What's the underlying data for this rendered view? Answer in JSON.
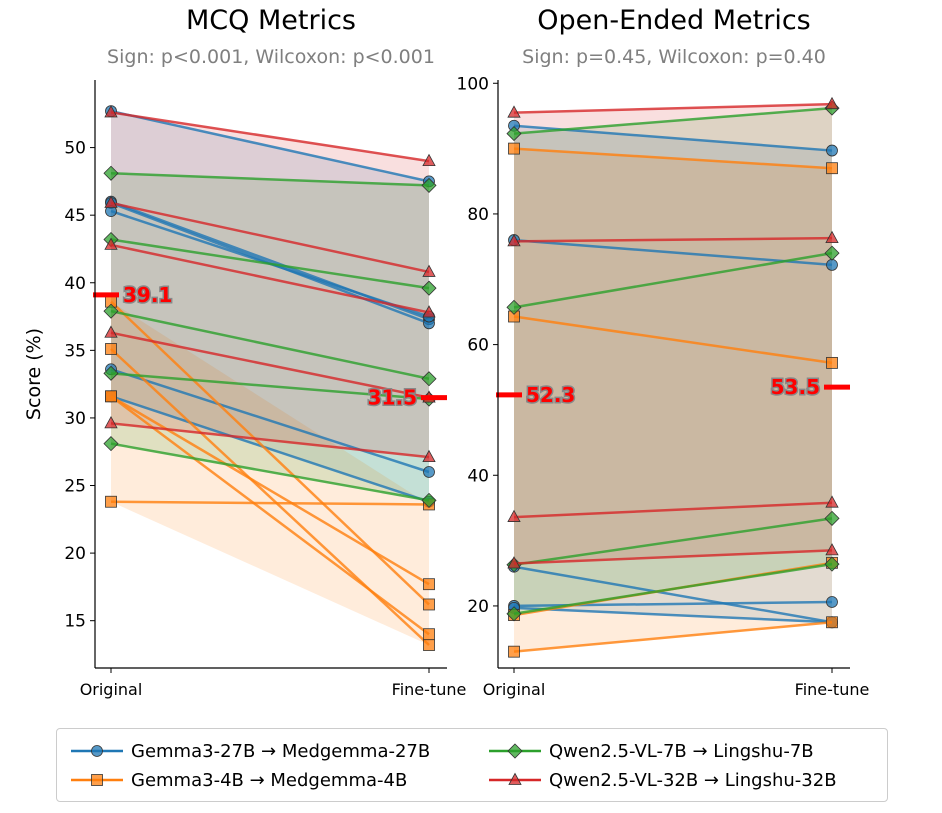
{
  "colors": {
    "gemma27": "#1f77b4",
    "gemma4": "#ff7f0e",
    "qwen7": "#2ca02c",
    "qwen32": "#d62728",
    "mean_line": "#ff0000",
    "subtitle": "#7f7f7f"
  },
  "legend": {
    "items": [
      {
        "label": "Gemma3-27B → Medgemma-27B",
        "color_key": "gemma27",
        "marker": "circle"
      },
      {
        "label": "Gemma3-4B → Medgemma-4B",
        "color_key": "gemma4",
        "marker": "square"
      },
      {
        "label": "Qwen2.5-VL-7B → Lingshu-7B",
        "color_key": "qwen7",
        "marker": "diamond"
      },
      {
        "label": "Qwen2.5-VL-32B → Lingshu-32B",
        "color_key": "qwen32",
        "marker": "triangle"
      }
    ]
  },
  "chart_data": [
    {
      "type": "line",
      "title": "MCQ Metrics",
      "subtitle": "Sign: p<0.001, Wilcoxon: p<0.001",
      "ylabel": "Score (%)",
      "categories": [
        "Original",
        "Fine-tune"
      ],
      "ylim": [
        11.5,
        55
      ],
      "yticks": [
        15,
        20,
        25,
        30,
        35,
        40,
        45,
        50
      ],
      "mean_labels": {
        "original": "39.1",
        "finetune": "31.5"
      },
      "means": [
        39.1,
        31.5
      ],
      "series": [
        {
          "name": "Gemma3-27B → Medgemma-27B",
          "color_key": "gemma27",
          "marker": "circle",
          "pairs": [
            [
              52.7,
              47.5
            ],
            [
              46.0,
              37.3
            ],
            [
              45.9,
              37.0
            ],
            [
              45.3,
              37.5
            ],
            [
              33.6,
              26.0
            ],
            [
              31.6,
              23.8
            ]
          ]
        },
        {
          "name": "Gemma3-4B → Medgemma-4B",
          "color_key": "gemma4",
          "marker": "square",
          "pairs": [
            [
              38.6,
              16.2
            ],
            [
              35.1,
              13.2
            ],
            [
              31.6,
              17.7
            ],
            [
              31.6,
              14.0
            ],
            [
              23.8,
              23.6
            ]
          ]
        },
        {
          "name": "Qwen2.5-VL-7B → Lingshu-7B",
          "color_key": "qwen7",
          "marker": "diamond",
          "pairs": [
            [
              48.1,
              47.2
            ],
            [
              43.2,
              39.6
            ],
            [
              37.9,
              32.9
            ],
            [
              33.3,
              31.4
            ],
            [
              28.1,
              23.9
            ]
          ]
        },
        {
          "name": "Qwen2.5-VL-32B → Lingshu-32B",
          "color_key": "qwen32",
          "marker": "triangle",
          "pairs": [
            [
              52.6,
              49.0
            ],
            [
              45.9,
              40.8
            ],
            [
              42.8,
              37.8
            ],
            [
              36.3,
              31.5
            ],
            [
              29.6,
              27.1
            ]
          ]
        }
      ]
    },
    {
      "type": "line",
      "title": "Open-Ended Metrics",
      "subtitle": "Sign: p=0.45, Wilcoxon: p=0.40",
      "ylabel": "",
      "categories": [
        "Original",
        "Fine-tune"
      ],
      "ylim": [
        10.5,
        100.5
      ],
      "yticks": [
        20,
        40,
        60,
        80,
        100
      ],
      "mean_labels": {
        "original": "52.3",
        "finetune": "53.5"
      },
      "means": [
        52.3,
        53.5
      ],
      "series": [
        {
          "name": "Gemma3-27B → Medgemma-27B",
          "color_key": "gemma27",
          "marker": "circle",
          "pairs": [
            [
              93.5,
              89.7
            ],
            [
              76.0,
              72.2
            ],
            [
              26.0,
              17.5
            ],
            [
              20.0,
              20.6
            ],
            [
              19.7,
              17.5
            ]
          ]
        },
        {
          "name": "Gemma3-4B → Medgemma-4B",
          "color_key": "gemma4",
          "marker": "square",
          "pairs": [
            [
              90.0,
              87.0
            ],
            [
              64.3,
              57.2
            ],
            [
              18.6,
              26.6
            ],
            [
              13.0,
              17.5
            ]
          ]
        },
        {
          "name": "Qwen2.5-VL-7B → Lingshu-7B",
          "color_key": "qwen7",
          "marker": "diamond",
          "pairs": [
            [
              92.3,
              96.2
            ],
            [
              65.7,
              74.0
            ],
            [
              26.3,
              33.4
            ],
            [
              18.8,
              26.4
            ]
          ]
        },
        {
          "name": "Qwen2.5-VL-32B → Lingshu-32B",
          "color_key": "qwen32",
          "marker": "triangle",
          "pairs": [
            [
              95.5,
              96.8
            ],
            [
              75.8,
              76.3
            ],
            [
              33.6,
              35.8
            ],
            [
              26.5,
              28.5
            ]
          ]
        }
      ]
    }
  ]
}
